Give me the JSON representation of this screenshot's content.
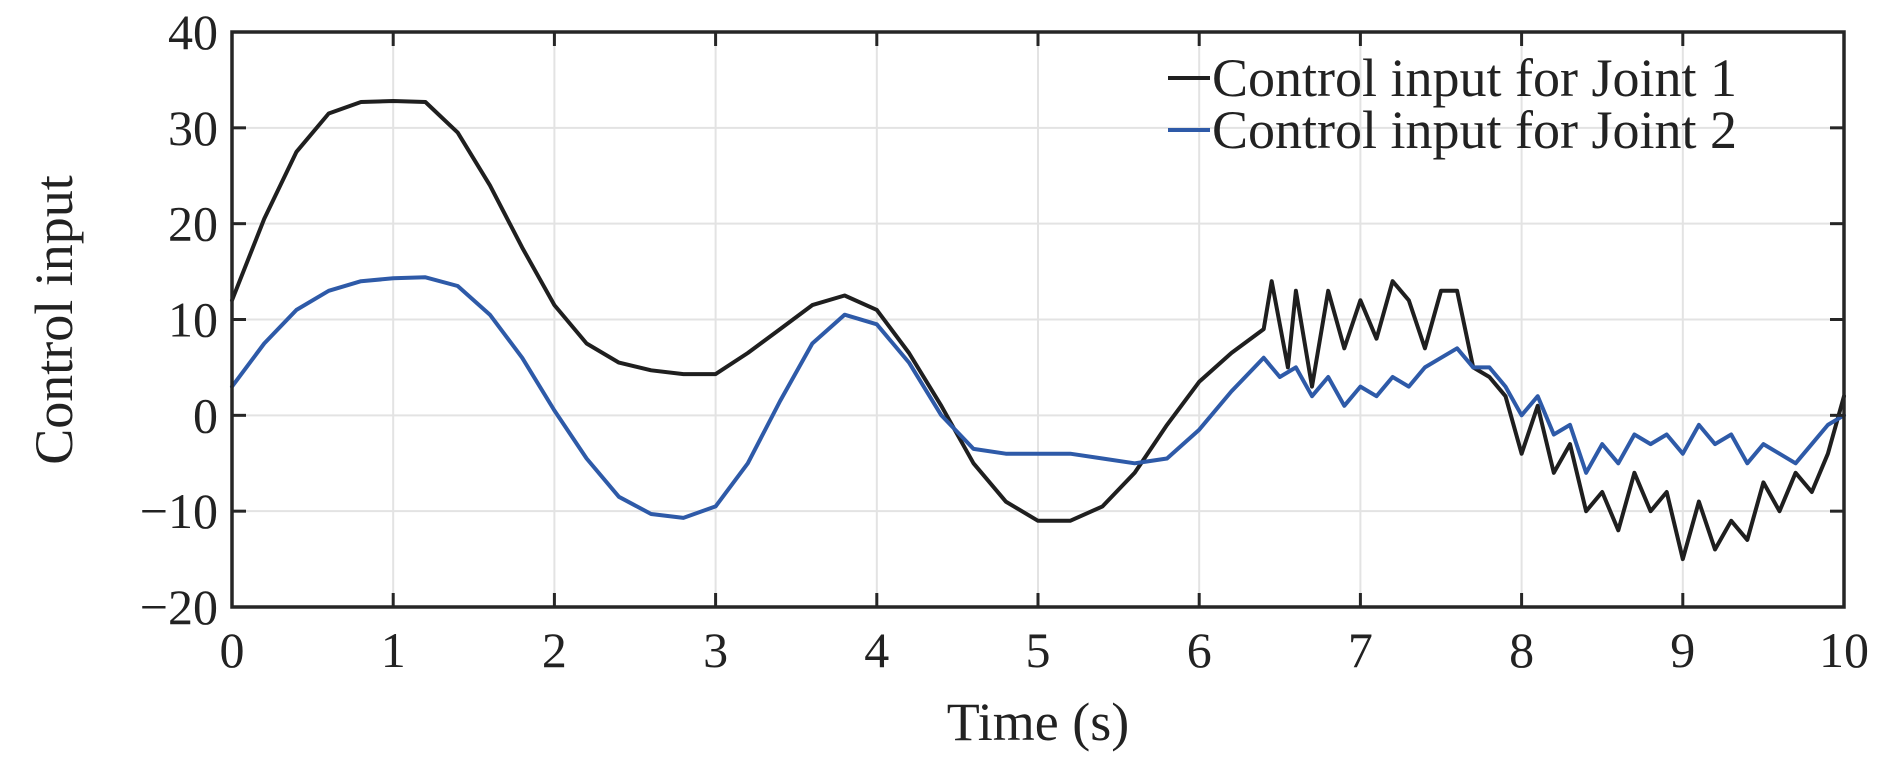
{
  "chart_data": {
    "type": "line",
    "title": "",
    "xlabel": "Time (s)",
    "ylabel": "Control input",
    "xlim": [
      0,
      10
    ],
    "ylim": [
      -20,
      40
    ],
    "xticks": [
      0,
      1,
      2,
      3,
      4,
      5,
      6,
      7,
      8,
      9,
      10
    ],
    "yticks": [
      -20,
      -10,
      0,
      10,
      20,
      30,
      40
    ],
    "xtick_labels": [
      "0",
      "1",
      "2",
      "3",
      "4",
      "5",
      "6",
      "7",
      "8",
      "9",
      "10"
    ],
    "ytick_labels": [
      "−20",
      "−10",
      "0",
      "10",
      "20",
      "30",
      "40"
    ],
    "grid": true,
    "legend_position": "top-right",
    "series": [
      {
        "name": "Control input for Joint 1",
        "color": "#1f1f1f",
        "x": [
          0,
          0.2,
          0.4,
          0.6,
          0.8,
          1.0,
          1.2,
          1.4,
          1.6,
          1.8,
          2.0,
          2.2,
          2.4,
          2.6,
          2.8,
          3.0,
          3.2,
          3.4,
          3.6,
          3.8,
          4.0,
          4.2,
          4.4,
          4.6,
          4.8,
          5.0,
          5.2,
          5.4,
          5.6,
          5.8,
          6.0,
          6.2,
          6.4,
          6.45,
          6.55,
          6.6,
          6.7,
          6.8,
          6.9,
          7.0,
          7.1,
          7.2,
          7.3,
          7.4,
          7.5,
          7.6,
          7.7,
          7.8,
          7.9,
          8.0,
          8.1,
          8.2,
          8.3,
          8.4,
          8.5,
          8.6,
          8.7,
          8.8,
          8.9,
          9.0,
          9.1,
          9.2,
          9.3,
          9.4,
          9.5,
          9.6,
          9.7,
          9.8,
          9.9,
          10.0
        ],
        "values": [
          12,
          20.5,
          27.5,
          31.5,
          32.7,
          32.8,
          32.7,
          29.5,
          24,
          17.5,
          11.5,
          7.5,
          5.5,
          4.7,
          4.3,
          4.3,
          6.5,
          9,
          11.5,
          12.5,
          11,
          6.5,
          1,
          -5,
          -9,
          -11,
          -11,
          -9.5,
          -6,
          -1,
          3.5,
          6.5,
          9,
          14,
          5,
          13,
          3,
          13,
          7,
          12,
          8,
          14,
          12,
          7,
          13,
          13,
          5,
          4,
          2,
          -4,
          1,
          -6,
          -3,
          -10,
          -8,
          -12,
          -6,
          -10,
          -8,
          -15,
          -9,
          -14,
          -11,
          -13,
          -7,
          -10,
          -6,
          -8,
          -4,
          2
        ]
      },
      {
        "name": "Control input for Joint 2",
        "color": "#2e5aa8",
        "x": [
          0,
          0.2,
          0.4,
          0.6,
          0.8,
          1.0,
          1.2,
          1.4,
          1.6,
          1.8,
          2.0,
          2.2,
          2.4,
          2.6,
          2.8,
          3.0,
          3.2,
          3.4,
          3.6,
          3.8,
          4.0,
          4.2,
          4.4,
          4.6,
          4.8,
          5.0,
          5.2,
          5.4,
          5.6,
          5.8,
          6.0,
          6.2,
          6.4,
          6.5,
          6.6,
          6.7,
          6.8,
          6.9,
          7.0,
          7.1,
          7.2,
          7.3,
          7.4,
          7.5,
          7.6,
          7.7,
          7.8,
          7.9,
          8.0,
          8.1,
          8.2,
          8.3,
          8.4,
          8.5,
          8.6,
          8.7,
          8.8,
          8.9,
          9.0,
          9.1,
          9.2,
          9.3,
          9.4,
          9.5,
          9.6,
          9.7,
          9.8,
          9.9,
          10.0
        ],
        "values": [
          3,
          7.5,
          11,
          13,
          14,
          14.3,
          14.4,
          13.5,
          10.5,
          6,
          0.5,
          -4.5,
          -8.5,
          -10.3,
          -10.7,
          -9.5,
          -5,
          1.5,
          7.5,
          10.5,
          9.5,
          5.5,
          0,
          -3.5,
          -4,
          -4,
          -4,
          -4.5,
          -5,
          -4.5,
          -1.5,
          2.5,
          6,
          4,
          5,
          2,
          4,
          1,
          3,
          2,
          4,
          3,
          5,
          6,
          7,
          5,
          5,
          3,
          0,
          2,
          -2,
          -1,
          -6,
          -3,
          -5,
          -2,
          -3,
          -2,
          -4,
          -1,
          -3,
          -2,
          -5,
          -3,
          -4,
          -5,
          -3,
          -1,
          0
        ]
      }
    ]
  }
}
